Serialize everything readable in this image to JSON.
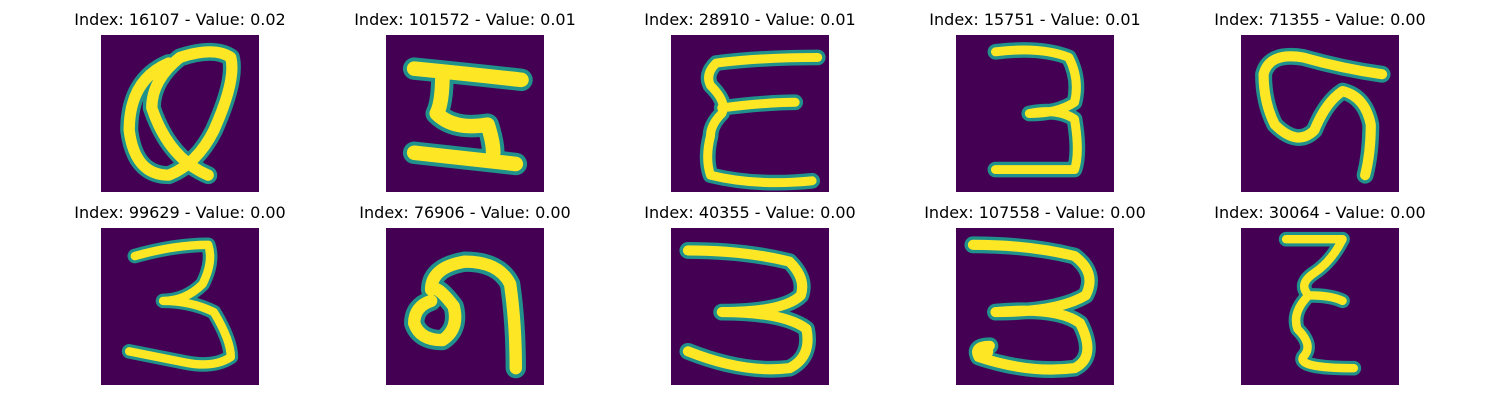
{
  "figure": {
    "panels": [
      {
        "title": "Index: 16107 - Value: 0.02",
        "index": 16107,
        "value": 0.02,
        "image_kind": "handwritten-glyph"
      },
      {
        "title": "Index: 101572 - Value: 0.01",
        "index": 101572,
        "value": 0.01,
        "image_kind": "handwritten-glyph"
      },
      {
        "title": "Index: 28910 - Value: 0.01",
        "index": 28910,
        "value": 0.01,
        "image_kind": "handwritten-glyph"
      },
      {
        "title": "Index: 15751 - Value: 0.01",
        "index": 15751,
        "value": 0.01,
        "image_kind": "handwritten-glyph"
      },
      {
        "title": "Index: 71355 - Value: 0.00",
        "index": 71355,
        "value": 0.0,
        "image_kind": "handwritten-glyph"
      },
      {
        "title": "Index: 99629 - Value: 0.00",
        "index": 99629,
        "value": 0.0,
        "image_kind": "handwritten-glyph"
      },
      {
        "title": "Index: 76906 - Value: 0.00",
        "index": 76906,
        "value": 0.0,
        "image_kind": "handwritten-glyph"
      },
      {
        "title": "Index: 40355 - Value: 0.00",
        "index": 40355,
        "value": 0.0,
        "image_kind": "handwritten-glyph"
      },
      {
        "title": "Index: 107558 - Value: 0.00",
        "index": 107558,
        "value": 0.0,
        "image_kind": "handwritten-glyph"
      },
      {
        "title": "Index: 30064 - Value: 0.00",
        "index": 30064,
        "value": 0.0,
        "image_kind": "handwritten-glyph"
      }
    ]
  },
  "colors": {
    "background": "#440154",
    "stroke": "#fde725",
    "stroke_edge": "#21918c",
    "stroke_mid": "#5ec962"
  }
}
